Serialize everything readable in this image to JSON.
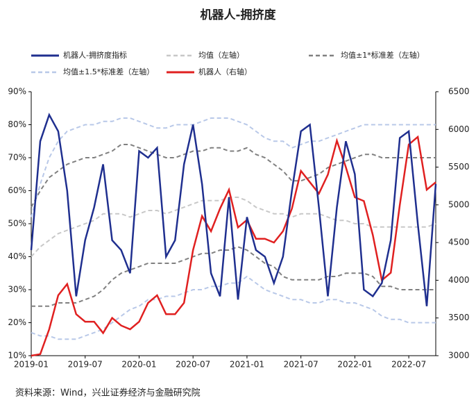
{
  "chart_data": {
    "type": "line",
    "title": "机器人-拥挤度",
    "source": "资料来源：Wind，兴业证券经济与金融研究院",
    "categories": [
      "2019-01",
      null,
      null,
      null,
      null,
      null,
      "2019-07",
      null,
      null,
      null,
      null,
      null,
      "2020-01",
      null,
      null,
      null,
      null,
      null,
      "2020-07",
      null,
      null,
      null,
      null,
      null,
      "2021-01",
      null,
      null,
      null,
      null,
      null,
      "2021-07",
      null,
      null,
      null,
      null,
      null,
      "2022-01",
      null,
      null,
      null,
      null,
      null,
      "2022-07",
      null,
      null,
      null
    ],
    "ylim": [
      10,
      90
    ],
    "yticks": [
      {
        "value": 10,
        "label": "10%"
      },
      {
        "value": 20,
        "label": "20%"
      },
      {
        "value": 30,
        "label": "30%"
      },
      {
        "value": 40,
        "label": "40%"
      },
      {
        "value": 50,
        "label": "50%"
      },
      {
        "value": 60,
        "label": "60%"
      },
      {
        "value": 70,
        "label": "70%"
      },
      {
        "value": 80,
        "label": "80%"
      },
      {
        "value": 90,
        "label": "90%"
      }
    ],
    "y2lim": [
      3000,
      6500
    ],
    "y2ticks": [
      3000,
      3500,
      4000,
      4500,
      5000,
      5500,
      6000,
      6500
    ],
    "series": [
      {
        "name": "机器人-拥挤度指标",
        "color": "#1f2f8f",
        "dashed": false,
        "values": [
          42,
          75,
          83,
          78,
          60,
          28,
          45,
          55,
          68,
          45,
          42,
          35,
          72,
          70,
          73,
          40,
          45,
          68,
          80,
          62,
          35,
          28,
          58,
          27,
          52,
          42,
          40,
          32,
          40,
          60,
          78,
          80,
          55,
          28,
          55,
          75,
          65,
          30,
          28,
          32,
          45,
          76,
          78,
          50,
          25,
          62
        ]
      },
      {
        "name": "均值（左轴）",
        "color": "#c8c8c8",
        "dashed": true,
        "values": [
          40,
          43,
          45,
          47,
          48,
          49,
          50,
          51,
          53,
          53,
          53,
          52,
          53,
          54,
          54,
          53,
          54,
          55,
          56,
          57,
          57,
          57,
          58,
          58,
          57,
          55,
          54,
          53,
          53,
          52,
          53,
          53,
          53,
          52,
          51,
          51,
          50,
          50,
          49,
          49,
          49,
          49,
          49,
          49,
          49,
          50
        ]
      },
      {
        "name": "均值±1*标准差（左轴）",
        "color": "#808080",
        "dashed": true,
        "upper": [
          55,
          60,
          64,
          66,
          68,
          69,
          70,
          70,
          71,
          72,
          74,
          74,
          73,
          72,
          71,
          70,
          70,
          71,
          72,
          72,
          73,
          73,
          72,
          72,
          73,
          71,
          70,
          68,
          66,
          63,
          63,
          64,
          65,
          67,
          68,
          69,
          70,
          71,
          71,
          70,
          70,
          70,
          70,
          70,
          70,
          70
        ],
        "lower": [
          25,
          25,
          25,
          26,
          26,
          26,
          27,
          28,
          30,
          33,
          35,
          36,
          37,
          38,
          38,
          38,
          38,
          39,
          40,
          41,
          41,
          42,
          42,
          43,
          42,
          40,
          38,
          37,
          34,
          33,
          33,
          33,
          33,
          34,
          34,
          35,
          35,
          35,
          34,
          31,
          31,
          30,
          30,
          30,
          30,
          30
        ]
      },
      {
        "name": "均值±1.5*标准差（左轴）",
        "color": "#b8c8e8",
        "dashed": true,
        "upper": [
          52,
          62,
          70,
          75,
          78,
          79,
          80,
          80,
          81,
          81,
          82,
          82,
          81,
          80,
          79,
          79,
          80,
          80,
          80,
          81,
          82,
          82,
          82,
          81,
          80,
          78,
          76,
          75,
          75,
          73,
          74,
          75,
          75,
          76,
          77,
          78,
          79,
          80,
          80,
          80,
          80,
          80,
          80,
          80,
          80,
          80
        ],
        "lower": [
          17,
          16,
          16,
          15,
          15,
          15,
          16,
          17,
          18,
          20,
          22,
          24,
          25,
          27,
          27,
          28,
          28,
          29,
          30,
          30,
          31,
          31,
          32,
          32,
          34,
          32,
          30,
          29,
          28,
          27,
          27,
          26,
          26,
          27,
          27,
          26,
          26,
          25,
          24,
          22,
          21,
          21,
          20,
          20,
          20,
          20
        ]
      },
      {
        "name": "机器人（右轴）",
        "color": "#e02020",
        "dashed": false,
        "axis": "y2",
        "values": [
          3000,
          3020,
          3350,
          3800,
          3950,
          3550,
          3450,
          3450,
          3300,
          3500,
          3400,
          3350,
          3450,
          3700,
          3800,
          3550,
          3550,
          3700,
          4400,
          4850,
          4650,
          4950,
          5200,
          4700,
          4800,
          4550,
          4550,
          4500,
          4650,
          4950,
          5450,
          5300,
          5150,
          5400,
          5850,
          5500,
          5100,
          5050,
          4600,
          4000,
          4100,
          5000,
          5800,
          5900,
          5200,
          5300
        ]
      }
    ]
  }
}
